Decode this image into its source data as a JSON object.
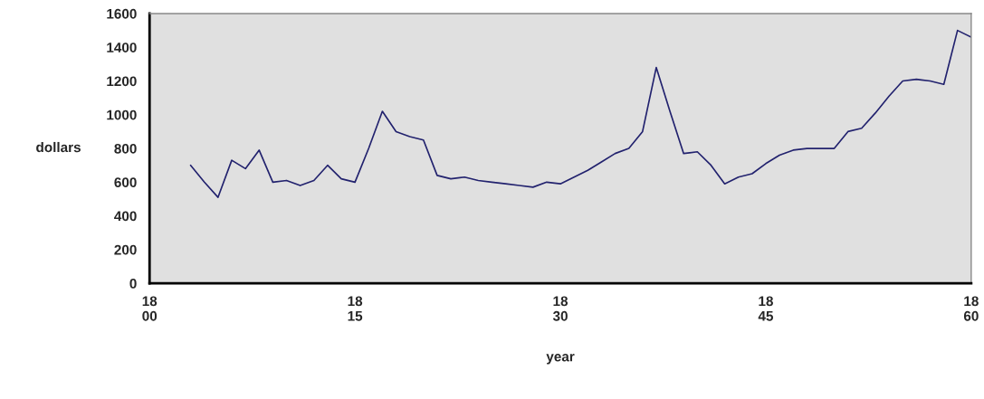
{
  "chart_data": {
    "type": "line",
    "xlabel": "year",
    "ylabel": "dollars",
    "categories": [
      "18\n00",
      null,
      null,
      null,
      null,
      null,
      null,
      null,
      null,
      null,
      null,
      null,
      null,
      null,
      null,
      "18\n15",
      null,
      null,
      null,
      null,
      null,
      null,
      null,
      null,
      null,
      null,
      null,
      null,
      null,
      null,
      "18\n30",
      null,
      null,
      null,
      null,
      null,
      null,
      null,
      null,
      null,
      null,
      null,
      null,
      null,
      null,
      "18\n45",
      null,
      null,
      null,
      null,
      null,
      null,
      null,
      null,
      null,
      null,
      null,
      null,
      null,
      null,
      "18\n60"
    ],
    "series": [
      {
        "color": "#22226e",
        "values": [
          null,
          null,
          null,
          700,
          600,
          510,
          730,
          680,
          790,
          600,
          610,
          580,
          610,
          700,
          620,
          600,
          800,
          1020,
          900,
          870,
          850,
          640,
          620,
          630,
          610,
          600,
          590,
          580,
          570,
          600,
          590,
          630,
          670,
          720,
          770,
          800,
          900,
          1280,
          1020,
          770,
          780,
          700,
          590,
          630,
          650,
          710,
          760,
          790,
          800,
          800,
          800,
          900,
          920,
          1010,
          1110,
          1200,
          1210,
          1200,
          1180,
          1500,
          1460
        ]
      }
    ],
    "ylim": [
      0,
      1600
    ],
    "yticks": [
      0,
      200,
      400,
      600,
      800,
      1000,
      1200,
      1400,
      1600
    ],
    "grid": false
  }
}
